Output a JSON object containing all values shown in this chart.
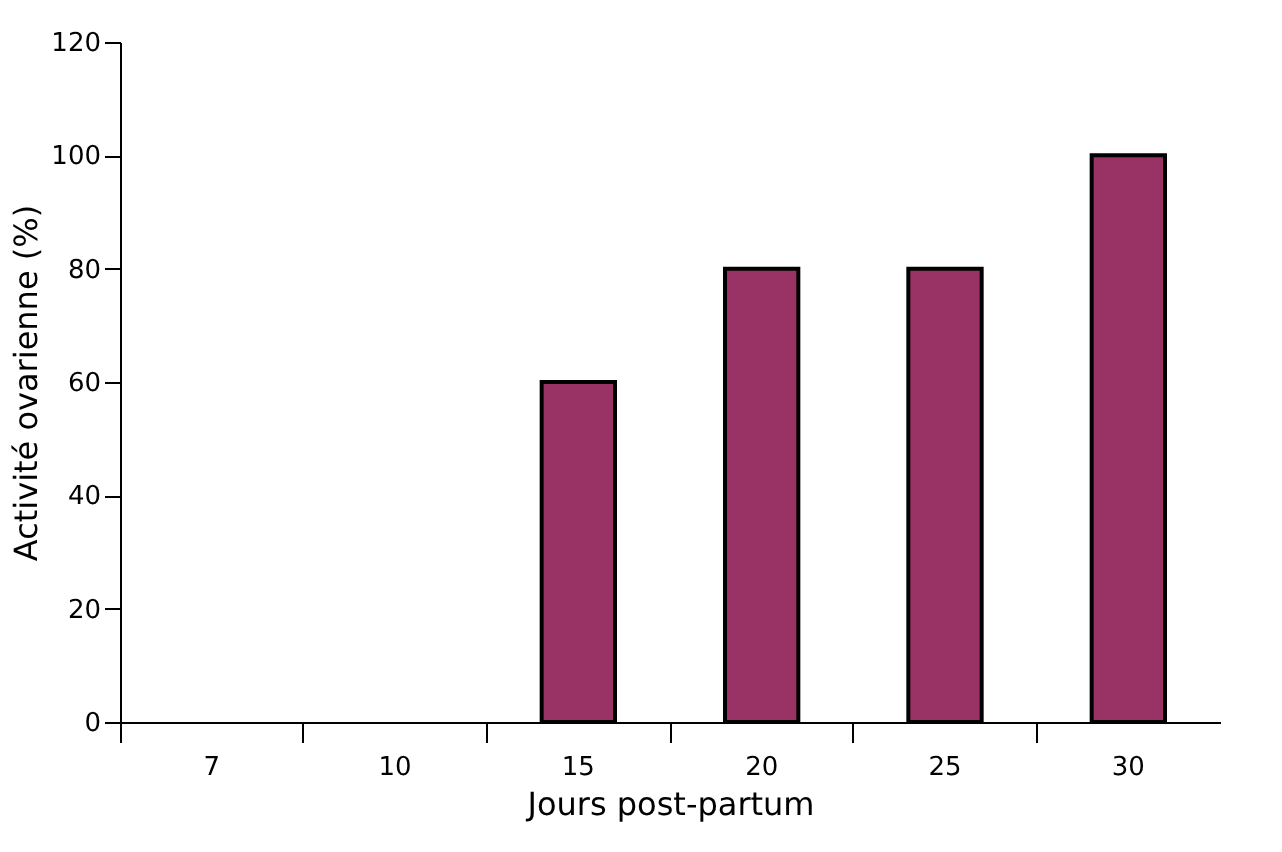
{
  "chart_data": {
    "type": "bar",
    "xlabel": "Jours post-partum",
    "ylabel": "Activité ovarienne (%)",
    "categories": [
      "7",
      "10",
      "15",
      "20",
      "25",
      "30"
    ],
    "values": [
      0,
      0,
      60,
      80,
      80,
      100
    ],
    "color": "#993366",
    "ylim": [
      0,
      120
    ],
    "yticks": [
      0,
      20,
      40,
      60,
      80,
      100,
      120
    ],
    "grid": false
  }
}
